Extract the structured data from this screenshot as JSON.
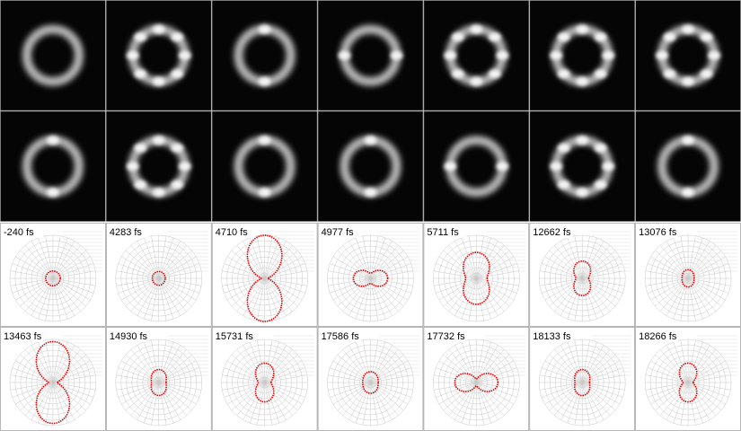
{
  "images": {
    "rows": 2,
    "columns": 7
  },
  "plots": [
    {
      "label": "-240 fs",
      "r_horizontal": 0.17,
      "r_vertical": 0.17
    },
    {
      "label": "4283 fs",
      "r_horizontal": 0.15,
      "r_vertical": 0.16
    },
    {
      "label": "4710 fs",
      "r_horizontal": 0.08,
      "r_vertical": 1.0
    },
    {
      "label": "4977 fs",
      "r_horizontal": 0.4,
      "r_vertical": 0.12
    },
    {
      "label": "5711 fs",
      "r_horizontal": 0.25,
      "r_vertical": 0.6
    },
    {
      "label": "12662 fs",
      "r_horizontal": 0.15,
      "r_vertical": 0.4
    },
    {
      "label": "13076 fs",
      "r_horizontal": 0.14,
      "r_vertical": 0.2
    },
    {
      "label": "13463 fs",
      "r_horizontal": 0.1,
      "r_vertical": 0.95
    },
    {
      "label": "14930 fs",
      "r_horizontal": 0.17,
      "r_vertical": 0.3
    },
    {
      "label": "15731 fs",
      "r_horizontal": 0.15,
      "r_vertical": 0.45
    },
    {
      "label": "17586 fs",
      "r_horizontal": 0.18,
      "r_vertical": 0.25
    },
    {
      "label": "17732 fs",
      "r_horizontal": 0.5,
      "r_vertical": 0.08
    },
    {
      "label": "18133 fs",
      "r_horizontal": 0.17,
      "r_vertical": 0.3
    },
    {
      "label": "18266 fs",
      "r_horizontal": 0.12,
      "r_vertical": 0.45
    }
  ]
}
